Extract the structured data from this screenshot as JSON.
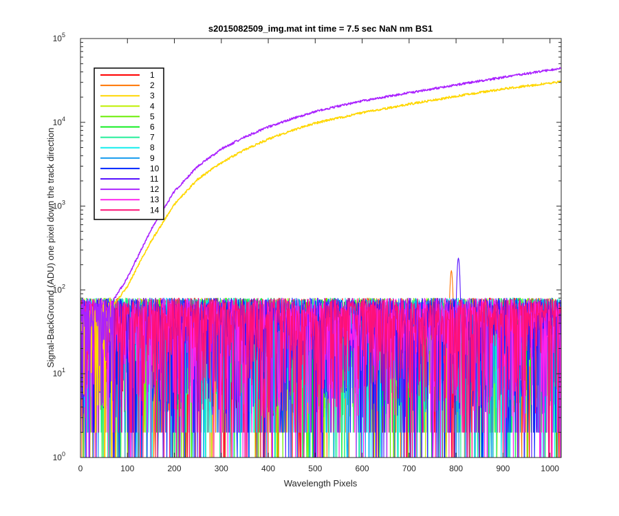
{
  "chart_data": {
    "type": "line",
    "title": "s2015082509_img.mat int time = 7.5 sec  NaN nm BS1",
    "xlabel": "Wavelength Pixels",
    "ylabel": "Signal-BackGround (ADU) one pixel down the track direction",
    "xlim": [
      0,
      1024
    ],
    "ylim": [
      1,
      100000
    ],
    "yscale": "log",
    "grid": false,
    "legend_position": "top-left",
    "x_ticks": [
      "0",
      "100",
      "200",
      "300",
      "400",
      "500",
      "600",
      "700",
      "800",
      "900",
      "1000"
    ],
    "y_ticks": [
      {
        "base": "10",
        "exp": "0",
        "value": 1
      },
      {
        "base": "10",
        "exp": "1",
        "value": 10
      },
      {
        "base": "10",
        "exp": "2",
        "value": 100
      },
      {
        "base": "10",
        "exp": "3",
        "value": 1000
      },
      {
        "base": "10",
        "exp": "4",
        "value": 10000
      },
      {
        "base": "10",
        "exp": "5",
        "value": 100000
      }
    ],
    "series": [
      {
        "name": "1",
        "color": "#ff0000",
        "kind": "noise"
      },
      {
        "name": "2",
        "color": "#ff7400",
        "kind": "noise",
        "peak": {
          "x": 790,
          "y": 170
        }
      },
      {
        "name": "3",
        "color": "#ffd700",
        "kind": "rise",
        "points": [
          [
            70,
            65
          ],
          [
            100,
            110
          ],
          [
            150,
            380
          ],
          [
            200,
            1050
          ],
          [
            250,
            2100
          ],
          [
            300,
            3300
          ],
          [
            350,
            4700
          ],
          [
            400,
            6300
          ],
          [
            450,
            8000
          ],
          [
            500,
            9800
          ],
          [
            600,
            13000
          ],
          [
            700,
            16500
          ],
          [
            800,
            20500
          ],
          [
            900,
            25000
          ],
          [
            1000,
            29500
          ],
          [
            1024,
            30500
          ]
        ]
      },
      {
        "name": "4",
        "color": "#bff000",
        "kind": "noise"
      },
      {
        "name": "5",
        "color": "#66ee00",
        "kind": "noise"
      },
      {
        "name": "6",
        "color": "#11ee22",
        "kind": "noise"
      },
      {
        "name": "7",
        "color": "#22ee99",
        "kind": "noise"
      },
      {
        "name": "8",
        "color": "#11eeee",
        "kind": "noise"
      },
      {
        "name": "9",
        "color": "#1199ee",
        "kind": "noise"
      },
      {
        "name": "10",
        "color": "#0022ff",
        "kind": "noise"
      },
      {
        "name": "11",
        "color": "#5511ff",
        "kind": "noise",
        "peak": {
          "x": 805,
          "y": 240
        }
      },
      {
        "name": "12",
        "color": "#aa22ff",
        "kind": "rise",
        "points": [
          [
            70,
            75
          ],
          [
            100,
            140
          ],
          [
            150,
            520
          ],
          [
            200,
            1500
          ],
          [
            250,
            3000
          ],
          [
            300,
            4800
          ],
          [
            350,
            6700
          ],
          [
            400,
            8800
          ],
          [
            450,
            11000
          ],
          [
            500,
            13500
          ],
          [
            600,
            18000
          ],
          [
            700,
            22500
          ],
          [
            800,
            28000
          ],
          [
            900,
            34500
          ],
          [
            1000,
            42000
          ],
          [
            1024,
            44500
          ]
        ]
      },
      {
        "name": "13",
        "color": "#ff22ee",
        "kind": "noise"
      },
      {
        "name": "14",
        "color": "#ff1177",
        "kind": "noise"
      }
    ]
  }
}
